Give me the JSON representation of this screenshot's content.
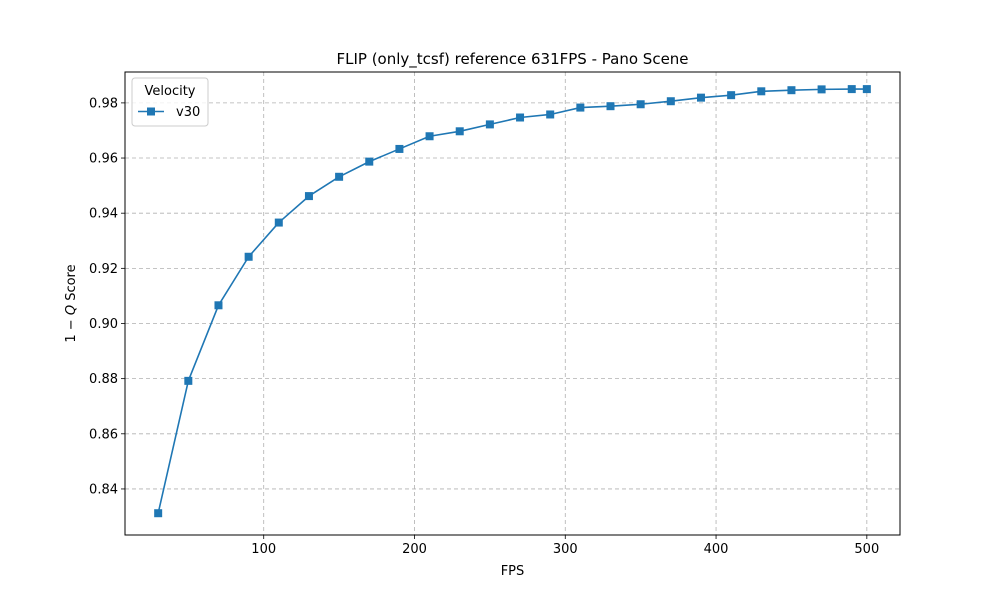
{
  "chart_data": {
    "type": "line",
    "title": "FLIP (only_tcsf) reference 631FPS - Pano Scene",
    "xlabel": "FPS",
    "ylabel_prefix": "1 − ",
    "ylabel_var": "Q",
    "ylabel_suffix": " Score",
    "xlim": [
      8,
      522
    ],
    "ylim": [
      0.8233,
      0.9912
    ],
    "xticks": [
      100,
      200,
      300,
      400,
      500
    ],
    "xtick_labels": [
      "100",
      "200",
      "300",
      "400",
      "500"
    ],
    "yticks": [
      0.84,
      0.86,
      0.88,
      0.9,
      0.92,
      0.94,
      0.96,
      0.98
    ],
    "ytick_labels": [
      "0.84",
      "0.86",
      "0.88",
      "0.90",
      "0.92",
      "0.94",
      "0.96",
      "0.98"
    ],
    "grid": true,
    "legend": {
      "title": "Velocity",
      "position": "top-left"
    },
    "series": [
      {
        "name": "v30",
        "color": "#1f77b4",
        "marker": "square",
        "x": [
          30,
          50,
          70,
          90,
          110,
          130,
          150,
          170,
          190,
          210,
          230,
          250,
          270,
          290,
          310,
          330,
          350,
          370,
          390,
          410,
          430,
          450,
          470,
          490,
          500
        ],
        "y": [
          0.8312,
          0.8792,
          0.9066,
          0.9242,
          0.9366,
          0.9462,
          0.9532,
          0.9587,
          0.9633,
          0.9679,
          0.9697,
          0.9722,
          0.9747,
          0.9758,
          0.9783,
          0.9788,
          0.9795,
          0.9806,
          0.9819,
          0.9828,
          0.9842,
          0.9846,
          0.9849,
          0.985,
          0.985
        ]
      }
    ]
  }
}
